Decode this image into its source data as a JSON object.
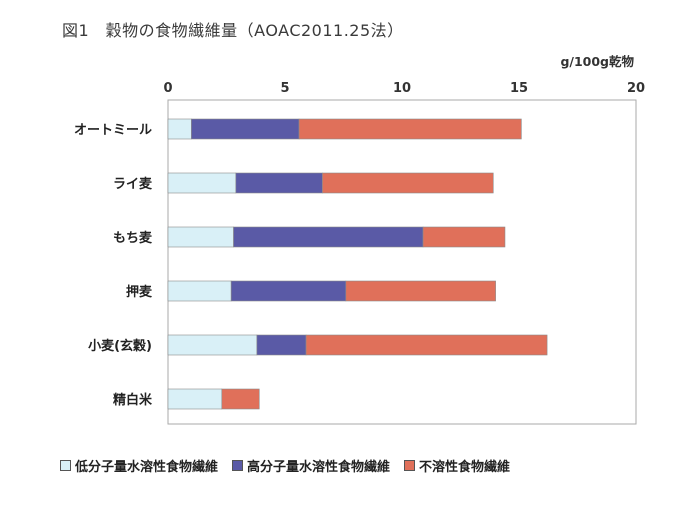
{
  "title": "図1　穀物の食物繊維量（AOAC2011.25法）",
  "unit_label": "g/100g乾物",
  "colors": {
    "low_molecular": "#d9f0f7",
    "high_molecular": "#5a5aa6",
    "insoluble": "#e0705a"
  },
  "chart_data": {
    "type": "bar",
    "orientation": "horizontal",
    "stacked": true,
    "categories": [
      "オートミール",
      "ライ麦",
      "もち麦",
      "押麦",
      "小麦(玄穀)",
      "精白米"
    ],
    "series": [
      {
        "name": "低分子量水溶性食物繊維",
        "values": [
          1.0,
          2.9,
          2.8,
          2.7,
          3.8,
          2.3
        ]
      },
      {
        "name": "高分子量水溶性食物繊維",
        "values": [
          4.6,
          3.7,
          8.1,
          4.9,
          2.1,
          0.0
        ]
      },
      {
        "name": "不溶性食物繊維",
        "values": [
          9.5,
          7.3,
          3.5,
          6.4,
          10.3,
          1.6
        ]
      }
    ],
    "xlim": [
      0,
      20
    ],
    "xticks": [
      "0",
      "5",
      "10",
      "15",
      "20"
    ],
    "grid": false,
    "legend_position": "bottom"
  }
}
